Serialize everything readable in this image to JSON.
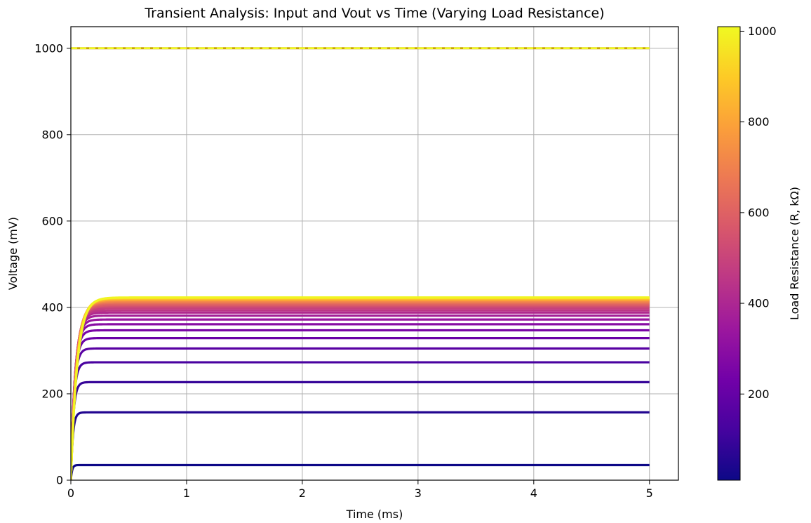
{
  "chart_data": {
    "type": "line",
    "title": "Transient Analysis: Input and Vout vs Time (Varying Load Resistance)",
    "xlabel": "Time (ms)",
    "ylabel": "Voltage (mV)",
    "xlim": [
      0,
      5.25
    ],
    "ylim": [
      0,
      1050
    ],
    "xticks": [
      0,
      1,
      2,
      3,
      4,
      5
    ],
    "yticks": [
      0,
      200,
      400,
      600,
      800,
      1000
    ],
    "grid": true,
    "input_signal": {
      "style": "dashed",
      "value_mV": 1000,
      "x_range": [
        0,
        5
      ],
      "color": "#f0f921"
    },
    "series_steady_state_mV": [
      35,
      157,
      227,
      273,
      305,
      329,
      347,
      361,
      372,
      381,
      388,
      393,
      398,
      402,
      405,
      408,
      411,
      413,
      415,
      417,
      418,
      420,
      421,
      422,
      423
    ],
    "series_load_resistance_kohm": [
      10,
      50,
      90,
      130,
      170,
      210,
      250,
      290,
      330,
      370,
      410,
      450,
      490,
      530,
      570,
      610,
      650,
      690,
      730,
      770,
      810,
      850,
      890,
      940,
      1000
    ],
    "colorbar": {
      "label": "Load Resistance (R, kΩ)",
      "range": [
        10,
        1010
      ],
      "ticks": [
        200,
        400,
        600,
        800,
        1000
      ],
      "colormap": "plasma",
      "stops": [
        "#0d0887",
        "#46039f",
        "#7201a8",
        "#9c179e",
        "#bd3786",
        "#d8576b",
        "#ed7953",
        "#fb9f3a",
        "#fdca26",
        "#f0f921"
      ]
    }
  }
}
